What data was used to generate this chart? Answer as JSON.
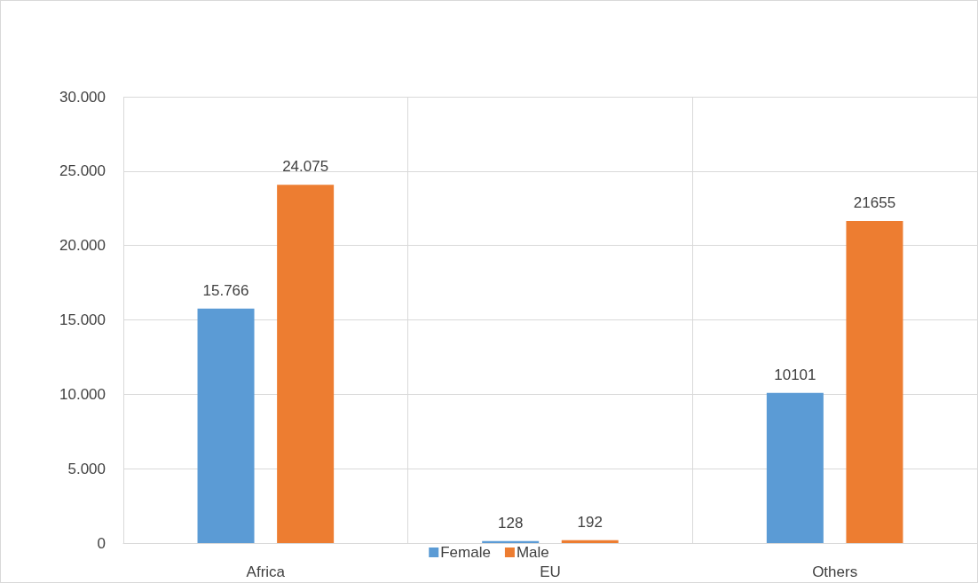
{
  "chart_data": {
    "type": "bar",
    "categories": [
      "Africa",
      "EU",
      "Others"
    ],
    "series": [
      {
        "name": "Female",
        "color": "#5b9bd5",
        "values": [
          15766,
          128,
          10101
        ],
        "value_labels": [
          "15.766",
          "128",
          "10101"
        ]
      },
      {
        "name": "Male",
        "color": "#ed7d31",
        "values": [
          24075,
          192,
          21655
        ],
        "value_labels": [
          "24.075",
          "192",
          "21655"
        ]
      }
    ],
    "ylim": [
      0,
      30000
    ],
    "yticks": [
      0,
      {
        "value": 5000,
        "label": "5.000"
      },
      {
        "value": 10000,
        "label": "10.000"
      },
      {
        "value": 15000,
        "label": "15.000"
      },
      {
        "value": 20000,
        "label": "20.000"
      },
      {
        "value": 25000,
        "label": "25.000"
      },
      {
        "value": 30000,
        "label": "30.000"
      }
    ],
    "grid": true,
    "legend": "bottom"
  }
}
